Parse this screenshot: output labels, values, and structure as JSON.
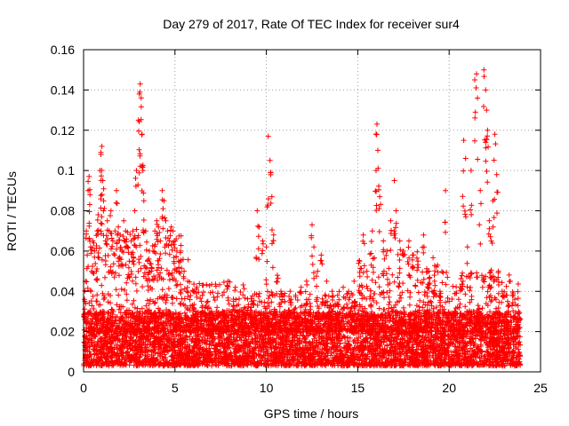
{
  "chart_data": {
    "type": "scatter",
    "title": "Day 279 of 2017, Rate Of TEC Index for receiver sur4",
    "xlabel": "GPS time / hours",
    "ylabel": "ROTI / TECUs",
    "xlim": [
      0,
      25
    ],
    "ylim": [
      0,
      0.16
    ],
    "x_ticks": [
      0,
      5,
      10,
      15,
      20,
      25
    ],
    "y_ticks": [
      0,
      0.02,
      0.04,
      0.06,
      0.08,
      0.1,
      0.12,
      0.14,
      0.16
    ],
    "x_tick_labels": [
      "0",
      "5",
      "10",
      "15",
      "20",
      "25"
    ],
    "y_tick_labels": [
      "0",
      "0.02",
      "0.04",
      "0.06",
      "0.08",
      "0.1",
      "0.12",
      "0.14",
      "0.16"
    ],
    "grid": true,
    "marker": "plus",
    "marker_color": "#ff0000",
    "points": [
      [
        0.05,
        0.036
      ],
      [
        0.1,
        0.045
      ],
      [
        0.15,
        0.07
      ],
      [
        0.2,
        0.058
      ],
      [
        0.25,
        0.09
      ],
      [
        0.3,
        0.097
      ],
      [
        0.35,
        0.088
      ],
      [
        0.4,
        0.04
      ],
      [
        0.5,
        0.065
      ],
      [
        0.6,
        0.06
      ],
      [
        0.7,
        0.05
      ],
      [
        0.75,
        0.07
      ],
      [
        0.8,
        0.078
      ],
      [
        0.9,
        0.1
      ],
      [
        0.95,
        0.108
      ],
      [
        1.0,
        0.112
      ],
      [
        1.05,
        0.095
      ],
      [
        1.1,
        0.085
      ],
      [
        1.2,
        0.065
      ],
      [
        1.3,
        0.075
      ],
      [
        1.4,
        0.07
      ],
      [
        1.5,
        0.08
      ],
      [
        1.6,
        0.065
      ],
      [
        1.7,
        0.058
      ],
      [
        1.8,
        0.09
      ],
      [
        1.9,
        0.072
      ],
      [
        2.0,
        0.068
      ],
      [
        2.1,
        0.06
      ],
      [
        2.2,
        0.075
      ],
      [
        2.3,
        0.07
      ],
      [
        2.4,
        0.062
      ],
      [
        2.5,
        0.055
      ],
      [
        2.6,
        0.065
      ],
      [
        2.7,
        0.07
      ],
      [
        2.8,
        0.08
      ],
      [
        2.9,
        0.1
      ],
      [
        3.0,
        0.125
      ],
      [
        3.05,
        0.138
      ],
      [
        3.1,
        0.143
      ],
      [
        3.15,
        0.136
      ],
      [
        3.2,
        0.118
      ],
      [
        3.25,
        0.1
      ],
      [
        3.3,
        0.085
      ],
      [
        3.4,
        0.07
      ],
      [
        3.5,
        0.055
      ],
      [
        3.6,
        0.06
      ],
      [
        3.7,
        0.05
      ],
      [
        3.8,
        0.06
      ],
      [
        3.9,
        0.07
      ],
      [
        4.0,
        0.075
      ],
      [
        4.1,
        0.072
      ],
      [
        4.2,
        0.065
      ],
      [
        4.3,
        0.09
      ],
      [
        4.4,
        0.085
      ],
      [
        4.5,
        0.075
      ],
      [
        4.6,
        0.07
      ],
      [
        4.7,
        0.065
      ],
      [
        4.8,
        0.072
      ],
      [
        4.9,
        0.07
      ],
      [
        5.0,
        0.065
      ],
      [
        5.1,
        0.06
      ],
      [
        5.2,
        0.055
      ],
      [
        5.3,
        0.06
      ],
      [
        5.5,
        0.05
      ],
      [
        5.7,
        0.045
      ],
      [
        6.0,
        0.04
      ],
      [
        6.2,
        0.042
      ],
      [
        6.5,
        0.038
      ],
      [
        6.8,
        0.035
      ],
      [
        7.0,
        0.03
      ],
      [
        7.3,
        0.032
      ],
      [
        7.6,
        0.03
      ],
      [
        7.9,
        0.045
      ],
      [
        8.2,
        0.035
      ],
      [
        8.5,
        0.03
      ],
      [
        8.8,
        0.032
      ],
      [
        9.2,
        0.035
      ],
      [
        9.5,
        0.08
      ],
      [
        9.6,
        0.072
      ],
      [
        9.8,
        0.065
      ],
      [
        10.0,
        0.062
      ],
      [
        10.1,
        0.117
      ],
      [
        10.2,
        0.105
      ],
      [
        10.3,
        0.087
      ],
      [
        10.4,
        0.068
      ],
      [
        10.6,
        0.048
      ],
      [
        10.8,
        0.04
      ],
      [
        11.0,
        0.035
      ],
      [
        11.3,
        0.04
      ],
      [
        11.6,
        0.038
      ],
      [
        11.9,
        0.042
      ],
      [
        12.2,
        0.045
      ],
      [
        12.5,
        0.073
      ],
      [
        12.6,
        0.062
      ],
      [
        12.8,
        0.05
      ],
      [
        13.0,
        0.058
      ],
      [
        13.3,
        0.045
      ],
      [
        13.6,
        0.04
      ],
      [
        13.9,
        0.038
      ],
      [
        14.2,
        0.042
      ],
      [
        14.5,
        0.04
      ],
      [
        14.8,
        0.045
      ],
      [
        15.1,
        0.055
      ],
      [
        15.3,
        0.068
      ],
      [
        15.5,
        0.05
      ],
      [
        15.8,
        0.07
      ],
      [
        16.0,
        0.1
      ],
      [
        16.05,
        0.123
      ],
      [
        16.1,
        0.11
      ],
      [
        16.2,
        0.087
      ],
      [
        16.4,
        0.065
      ],
      [
        16.6,
        0.06
      ],
      [
        16.8,
        0.075
      ],
      [
        17.0,
        0.095
      ],
      [
        17.1,
        0.08
      ],
      [
        17.3,
        0.065
      ],
      [
        17.5,
        0.06
      ],
      [
        17.8,
        0.065
      ],
      [
        18.0,
        0.058
      ],
      [
        18.3,
        0.055
      ],
      [
        18.6,
        0.068
      ],
      [
        18.9,
        0.05
      ],
      [
        19.2,
        0.045
      ],
      [
        19.5,
        0.04
      ],
      [
        19.8,
        0.09
      ],
      [
        20.0,
        0.035
      ],
      [
        20.3,
        0.03
      ],
      [
        20.6,
        0.042
      ],
      [
        20.8,
        0.115
      ],
      [
        20.9,
        0.106
      ],
      [
        21.0,
        0.062
      ],
      [
        21.2,
        0.1
      ],
      [
        21.4,
        0.145
      ],
      [
        21.5,
        0.148
      ],
      [
        21.7,
        0.09
      ],
      [
        21.9,
        0.15
      ],
      [
        22.0,
        0.14
      ],
      [
        22.05,
        0.13
      ],
      [
        22.1,
        0.12
      ],
      [
        22.2,
        0.075
      ],
      [
        22.3,
        0.065
      ],
      [
        22.4,
        0.085
      ],
      [
        22.5,
        0.118
      ],
      [
        22.6,
        0.098
      ],
      [
        22.7,
        0.05
      ],
      [
        22.9,
        0.04
      ],
      [
        23.2,
        0.035
      ],
      [
        23.5,
        0.038
      ],
      [
        23.8,
        0.03
      ]
    ],
    "dense_band": {
      "x_range": [
        0,
        23.9
      ],
      "y_range": [
        0.003,
        0.03
      ],
      "description_count": 0
    },
    "mid_band": {
      "segments": [
        {
          "x_range": [
            0.3,
            5.8
          ],
          "y_range": [
            0.02,
            0.07
          ]
        },
        {
          "x_range": [
            5.8,
            9.0
          ],
          "y_range": [
            0.02,
            0.045
          ]
        },
        {
          "x_range": [
            9.0,
            15.0
          ],
          "y_range": [
            0.02,
            0.04
          ]
        },
        {
          "x_range": [
            15.0,
            19.5
          ],
          "y_range": [
            0.02,
            0.06
          ]
        },
        {
          "x_range": [
            19.5,
            23.8
          ],
          "y_range": [
            0.02,
            0.05
          ]
        }
      ]
    }
  }
}
